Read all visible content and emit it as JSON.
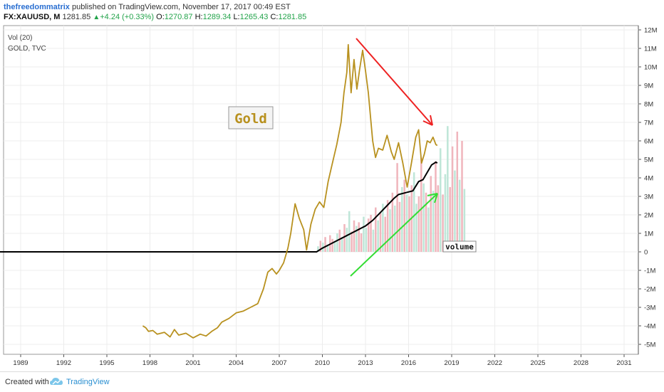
{
  "header": {
    "author": "thefreedommatrix",
    "published_text": "published on TradingView.com, November 17, 2017 00:49 EST",
    "symbol": "FX:XAUUSD, M",
    "last": "1281.85",
    "change": "+4.24 (+0.33%)",
    "o_label": "O:",
    "o_value": "1270.87",
    "h_label": "H:",
    "h_value": "1289.34",
    "l_label": "L:",
    "l_value": "1265.43",
    "c_label": "C:",
    "c_value": "1281.85"
  },
  "legend": {
    "vol": "Vol (20)",
    "gold": "GOLD, TVC"
  },
  "annotations": {
    "gold_label": "Gold",
    "volume_label": "volume"
  },
  "footer": {
    "created_with": "Created with",
    "brand": "TradingView"
  },
  "colors": {
    "gold": "#b8911f",
    "ma": "#000000",
    "red_arrow": "#ee2222",
    "green_arrow": "#33dd33",
    "vol_up": "#bfe6d8",
    "vol_down": "#f0b6bd"
  },
  "chart_data": {
    "type": "line",
    "x_ticks": [
      "1989",
      "1992",
      "1995",
      "1998",
      "2001",
      "2004",
      "2007",
      "2010",
      "2013",
      "2016",
      "2019",
      "2022",
      "2025",
      "2028",
      "2031"
    ],
    "y_ticks": [
      "12M",
      "11M",
      "10M",
      "9M",
      "8M",
      "7M",
      "6M",
      "5M",
      "4M",
      "3M",
      "2M",
      "1M",
      "0",
      "-1M",
      "-2M",
      "-3M",
      "-4M",
      "-5M"
    ],
    "ylim": [
      -5400000,
      12200000
    ],
    "xlim": [
      1987.5,
      2032
    ],
    "series": [
      {
        "kind": "price_line",
        "points": [
          [
            1997.5,
            -4000000
          ],
          [
            1997.7,
            -4100000
          ],
          [
            1997.9,
            -4300000
          ],
          [
            1998.2,
            -4250000
          ],
          [
            1998.5,
            -4450000
          ],
          [
            1999.0,
            -4350000
          ],
          [
            1999.4,
            -4600000
          ],
          [
            1999.7,
            -4200000
          ],
          [
            2000.0,
            -4500000
          ],
          [
            2000.5,
            -4400000
          ],
          [
            2001.0,
            -4650000
          ],
          [
            2001.5,
            -4450000
          ],
          [
            2001.9,
            -4550000
          ],
          [
            2002.3,
            -4300000
          ],
          [
            2002.7,
            -4100000
          ],
          [
            2003.0,
            -3800000
          ],
          [
            2003.5,
            -3600000
          ],
          [
            2004.0,
            -3300000
          ],
          [
            2004.5,
            -3200000
          ],
          [
            2005.0,
            -3000000
          ],
          [
            2005.5,
            -2800000
          ],
          [
            2005.9,
            -2000000
          ],
          [
            2006.2,
            -1100000
          ],
          [
            2006.5,
            -900000
          ],
          [
            2006.8,
            -1200000
          ],
          [
            2007.0,
            -1000000
          ],
          [
            2007.3,
            -600000
          ],
          [
            2007.6,
            200000
          ],
          [
            2007.8,
            1000000
          ],
          [
            2008.1,
            2600000
          ],
          [
            2008.4,
            1800000
          ],
          [
            2008.7,
            1200000
          ],
          [
            2008.9,
            100000
          ],
          [
            2009.2,
            1500000
          ],
          [
            2009.5,
            2300000
          ],
          [
            2009.8,
            2700000
          ],
          [
            2010.1,
            2400000
          ],
          [
            2010.4,
            3800000
          ],
          [
            2010.7,
            4800000
          ],
          [
            2011.0,
            5800000
          ],
          [
            2011.3,
            7000000
          ],
          [
            2011.5,
            8600000
          ],
          [
            2011.7,
            9700000
          ],
          [
            2011.8,
            11200000
          ],
          [
            2012.0,
            8600000
          ],
          [
            2012.2,
            10400000
          ],
          [
            2012.4,
            8800000
          ],
          [
            2012.6,
            9900000
          ],
          [
            2012.8,
            10900000
          ],
          [
            2013.0,
            9800000
          ],
          [
            2013.2,
            8600000
          ],
          [
            2013.5,
            6000000
          ],
          [
            2013.7,
            5100000
          ],
          [
            2013.9,
            5600000
          ],
          [
            2014.2,
            5500000
          ],
          [
            2014.5,
            6300000
          ],
          [
            2014.8,
            5400000
          ],
          [
            2015.0,
            5000000
          ],
          [
            2015.3,
            5900000
          ],
          [
            2015.6,
            4800000
          ],
          [
            2015.9,
            3500000
          ],
          [
            2016.2,
            4800000
          ],
          [
            2016.5,
            6200000
          ],
          [
            2016.7,
            6600000
          ],
          [
            2016.9,
            4800000
          ],
          [
            2017.1,
            5300000
          ],
          [
            2017.3,
            6000000
          ],
          [
            2017.5,
            5900000
          ],
          [
            2017.7,
            6200000
          ],
          [
            2017.9,
            5800000
          ],
          [
            2018.0,
            5750000
          ]
        ]
      },
      {
        "kind": "volume_ma",
        "points": [
          [
            1987.5,
            0
          ],
          [
            2009.6,
            0
          ],
          [
            2010.0,
            200000
          ],
          [
            2010.5,
            400000
          ],
          [
            2011.0,
            600000
          ],
          [
            2011.5,
            800000
          ],
          [
            2012.0,
            1000000
          ],
          [
            2012.5,
            1200000
          ],
          [
            2013.0,
            1400000
          ],
          [
            2013.5,
            1700000
          ],
          [
            2014.0,
            2100000
          ],
          [
            2014.5,
            2500000
          ],
          [
            2015.0,
            2900000
          ],
          [
            2015.3,
            3100000
          ],
          [
            2015.8,
            3200000
          ],
          [
            2016.3,
            3300000
          ],
          [
            2016.7,
            3800000
          ],
          [
            2017.0,
            3900000
          ],
          [
            2017.3,
            4300000
          ],
          [
            2017.6,
            4700000
          ],
          [
            2017.9,
            4850000
          ],
          [
            2018.0,
            4800000
          ]
        ]
      },
      {
        "kind": "volume_bars",
        "start": 2009.7,
        "step": 0.167,
        "values": [
          300000,
          600000,
          500000,
          800000,
          400000,
          900000,
          700000,
          600000,
          1000000,
          1200000,
          800000,
          1500000,
          1300000,
          2200000,
          1100000,
          1700000,
          1400000,
          1600000,
          1000000,
          1900000,
          1300000,
          1800000,
          2000000,
          1200000,
          2400000,
          1700000,
          2100000,
          2600000,
          1900000,
          2800000,
          2300000,
          3200000,
          2500000,
          4800000,
          2700000,
          3500000,
          3900000,
          3100000,
          3000000,
          3600000,
          4300000,
          2600000,
          3000000,
          5100000,
          3700000,
          3200000,
          2400000,
          4100000,
          3300000,
          4900000,
          3600000,
          5600000,
          3100000,
          4200000,
          6800000,
          3500000,
          5700000,
          4400000,
          6500000,
          3900000,
          6000000,
          3400000
        ],
        "up": [
          1,
          0,
          1,
          0,
          1,
          0,
          0,
          1,
          1,
          0,
          1,
          0,
          1,
          1,
          0,
          0,
          1,
          0,
          0,
          1,
          1,
          0,
          0,
          1,
          0,
          1,
          0,
          1,
          0,
          0,
          1,
          0,
          1,
          0,
          0,
          1,
          0,
          1,
          0,
          0,
          1,
          1,
          0,
          0,
          1,
          0,
          1,
          0,
          1,
          0,
          0,
          1,
          0,
          1,
          1,
          0,
          0,
          1,
          0,
          1,
          0,
          1
        ]
      }
    ]
  }
}
